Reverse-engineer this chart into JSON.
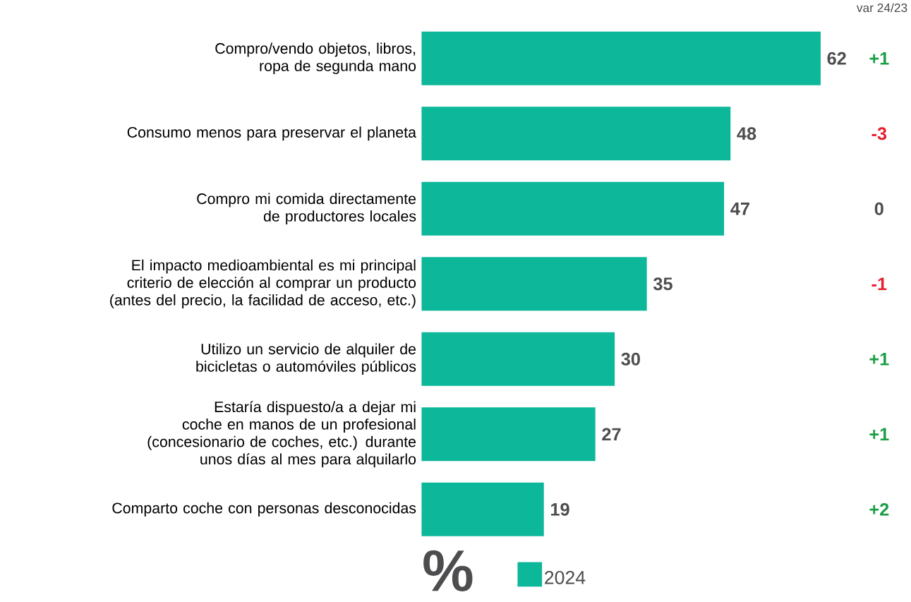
{
  "chart_data": {
    "type": "bar",
    "orientation": "horizontal",
    "categories": [
      "Compro/vendo objetos, libros, ropa de segunda mano",
      "Consumo menos para preservar el planeta",
      "Compro mi comida directamente de productores locales",
      "El impacto medioambiental es mi principal criterio de elección al comprar un producto (antes del precio, la facilidad de acceso, etc.)",
      "Utilizo un servicio de alquiler de bicicletas o automóviles públicos",
      "Estaría dispuesto/a a dejar mi coche en manos de un profesional (concesionario de coches, etc.) durante unos días al mes para alquilarlo",
      "Comparto coche con personas desconocidas"
    ],
    "series": [
      {
        "name": "2024",
        "color": "#0db799",
        "values": [
          62,
          48,
          47,
          35,
          30,
          27,
          19
        ]
      }
    ],
    "data_labels": true,
    "legend": "bottom",
    "xlabel": "%",
    "annotations": [
      "var 24/23",
      "+1",
      "-3",
      "0",
      "-1",
      "+1",
      "+1",
      "+2"
    ]
  }
}
